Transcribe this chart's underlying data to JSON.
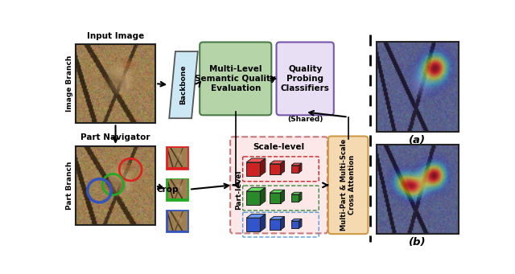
{
  "bg_color": "#ffffff",
  "backbone_color": "#cce8f4",
  "mlsqe_color": "#b5d5a8",
  "qpc_color": "#e8dff5",
  "mpmsa_color": "#f5d9b0",
  "partbox_color": "#fce8e8",
  "label_branch_image": "Image Branch",
  "label_branch_part": "Part Branch",
  "label_input": "Input Image",
  "label_navigator": "Part Navigator",
  "label_backbone": "Backbone",
  "label_mlsqe": "Multi-Level\nSemantic Quality\nEvaluation",
  "label_qpc": "Quality\nProbing\nClassifiers",
  "label_shared": "(Shared)",
  "label_crop": "Crop",
  "label_scale": "Scale-level",
  "label_part": "Part-level",
  "label_mpmsa": "Multi-Part & Multi-Scale\nCross Attention",
  "label_a": "(a)",
  "label_b": "(b)"
}
